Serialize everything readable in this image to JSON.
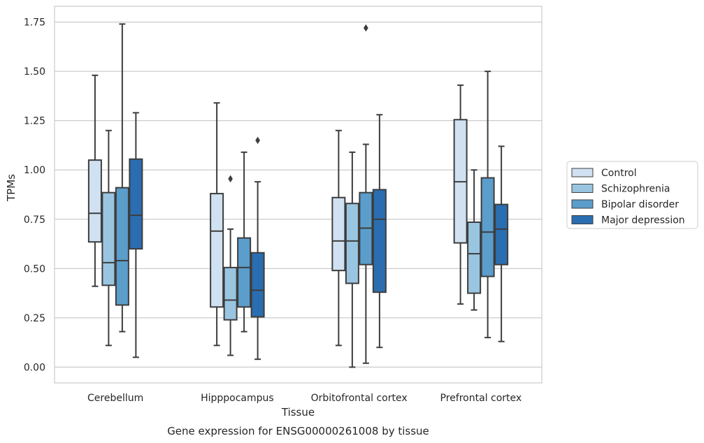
{
  "caption": "Gene expression for ENSG00000261008 by tissue",
  "chart_data": {
    "type": "box",
    "xlabel": "Tissue",
    "ylabel": "TPMs",
    "ylim": [
      -0.08,
      1.83
    ],
    "yticks": [
      0.0,
      0.25,
      0.5,
      0.75,
      1.0,
      1.25,
      1.5,
      1.75
    ],
    "ytick_labels": [
      "0.00",
      "0.25",
      "0.50",
      "0.75",
      "1.00",
      "1.25",
      "1.50",
      "1.75"
    ],
    "grid": "horizontal",
    "legend_position": "right",
    "categories": [
      "Cerebellum",
      "Hipppocampus",
      "Orbitofrontal cortex",
      "Prefrontal cortex"
    ],
    "series": [
      {
        "name": "Control",
        "color": "#d0e1f2",
        "boxes": [
          {
            "whisker_low": 0.41,
            "q1": 0.635,
            "median": 0.78,
            "q3": 1.05,
            "whisker_high": 1.48,
            "outliers": []
          },
          {
            "whisker_low": 0.11,
            "q1": 0.305,
            "median": 0.69,
            "q3": 0.88,
            "whisker_high": 1.34,
            "outliers": []
          },
          {
            "whisker_low": 0.11,
            "q1": 0.49,
            "median": 0.64,
            "q3": 0.86,
            "whisker_high": 1.2,
            "outliers": []
          },
          {
            "whisker_low": 0.32,
            "q1": 0.63,
            "median": 0.94,
            "q3": 1.255,
            "whisker_high": 1.43,
            "outliers": []
          }
        ]
      },
      {
        "name": "Schizophrenia",
        "color": "#9ac5e0",
        "boxes": [
          {
            "whisker_low": 0.11,
            "q1": 0.415,
            "median": 0.53,
            "q3": 0.885,
            "whisker_high": 1.2,
            "outliers": []
          },
          {
            "whisker_low": 0.06,
            "q1": 0.24,
            "median": 0.34,
            "q3": 0.505,
            "whisker_high": 0.7,
            "outliers": [
              0.955
            ]
          },
          {
            "whisker_low": 0.0,
            "q1": 0.425,
            "median": 0.64,
            "q3": 0.83,
            "whisker_high": 1.09,
            "outliers": []
          },
          {
            "whisker_low": 0.29,
            "q1": 0.375,
            "median": 0.575,
            "q3": 0.735,
            "whisker_high": 1.0,
            "outliers": []
          }
        ]
      },
      {
        "name": "Bipolar disorder",
        "color": "#5b9dcb",
        "boxes": [
          {
            "whisker_low": 0.18,
            "q1": 0.315,
            "median": 0.54,
            "q3": 0.91,
            "whisker_high": 1.74,
            "outliers": []
          },
          {
            "whisker_low": 0.18,
            "q1": 0.305,
            "median": 0.505,
            "q3": 0.655,
            "whisker_high": 1.09,
            "outliers": []
          },
          {
            "whisker_low": 0.02,
            "q1": 0.52,
            "median": 0.705,
            "q3": 0.885,
            "whisker_high": 1.13,
            "outliers": [
              1.72
            ]
          },
          {
            "whisker_low": 0.15,
            "q1": 0.46,
            "median": 0.685,
            "q3": 0.96,
            "whisker_high": 1.5,
            "outliers": []
          }
        ]
      },
      {
        "name": "Major depression",
        "color": "#2a6eb1",
        "boxes": [
          {
            "whisker_low": 0.05,
            "q1": 0.6,
            "median": 0.77,
            "q3": 1.055,
            "whisker_high": 1.29,
            "outliers": []
          },
          {
            "whisker_low": 0.04,
            "q1": 0.255,
            "median": 0.39,
            "q3": 0.58,
            "whisker_high": 0.94,
            "outliers": [
              1.15
            ]
          },
          {
            "whisker_low": 0.1,
            "q1": 0.38,
            "median": 0.75,
            "q3": 0.9,
            "whisker_high": 1.28,
            "outliers": []
          },
          {
            "whisker_low": 0.13,
            "q1": 0.52,
            "median": 0.7,
            "q3": 0.825,
            "whisker_high": 1.12,
            "outliers": []
          }
        ]
      }
    ]
  }
}
